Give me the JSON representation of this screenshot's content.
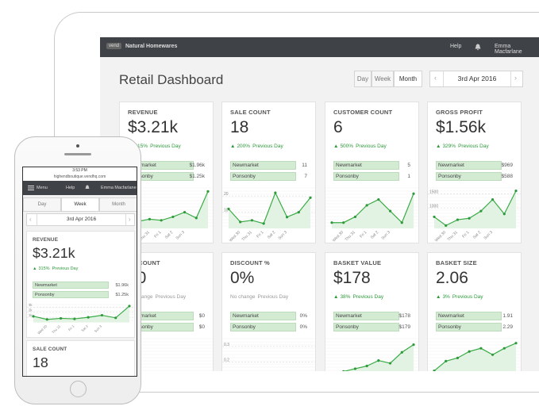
{
  "tablet": {
    "brand": "vend",
    "store": "Natural Homewares",
    "help": "Help",
    "user": "Emma Macfarlane",
    "title": "Retail Dashboard",
    "ranges": [
      "Day",
      "Week",
      "Month"
    ],
    "selected_range": 2,
    "date": "3rd Apr 2016",
    "days": [
      "Wed 30",
      "Thu 31",
      "Fri 1",
      "Sat 2",
      "Sun 3"
    ],
    "cards": [
      {
        "label": "REVENUE",
        "value": "$3.21k",
        "direction": "up",
        "change": "315%",
        "change_note": "Previous Day",
        "rows": [
          {
            "name": "Newmarket",
            "value": "$1.96k"
          },
          {
            "name": "Ponsonby",
            "value": "$1.25k"
          }
        ],
        "trend": [
          1.2,
          0.6,
          0.8,
          0.7,
          1.0,
          1.4,
          0.9,
          3.2
        ],
        "trend_ylim": [
          0,
          3.5
        ]
      },
      {
        "label": "SALE COUNT",
        "value": "18",
        "direction": "up",
        "change": "200%",
        "change_note": "Previous Day",
        "rows": [
          {
            "name": "Newmarket",
            "value": "11"
          },
          {
            "name": "Ponsonby",
            "value": "7"
          }
        ],
        "trend": [
          12,
          4,
          5,
          3,
          22,
          7,
          10,
          19
        ],
        "trend_ylim": [
          0,
          25
        ],
        "yticks": [
          10,
          20
        ]
      },
      {
        "label": "CUSTOMER COUNT",
        "value": "6",
        "direction": "up",
        "change": "500%",
        "change_note": "Previous Day",
        "rows": [
          {
            "name": "Newmarket",
            "value": "5"
          },
          {
            "name": "Ponsonby",
            "value": "1"
          }
        ],
        "trend": [
          1,
          1,
          2,
          4,
          5,
          3,
          1,
          6
        ],
        "trend_ylim": [
          0,
          7
        ]
      },
      {
        "label": "GROSS PROFIT",
        "value": "$1.56k",
        "direction": "up",
        "change": "329%",
        "change_note": "Previous Day",
        "rows": [
          {
            "name": "Newmarket",
            "value": "$969"
          },
          {
            "name": "Ponsonby",
            "value": "$588"
          }
        ],
        "trend": [
          700,
          400,
          600,
          650,
          900,
          1300,
          800,
          1600
        ],
        "trend_ylim": [
          300,
          1700
        ],
        "yticks": [
          1000,
          1500
        ]
      },
      {
        "label": "DISCOUNT",
        "value": "$0",
        "direction": "flat",
        "change": "No change",
        "change_note": "Previous Day",
        "rows": [
          {
            "name": "Newmarket",
            "value": "$0"
          },
          {
            "name": "Ponsonby",
            "value": "$0"
          }
        ],
        "trend": [
          0,
          0,
          0,
          0,
          0,
          0,
          0,
          0
        ],
        "trend_ylim": [
          0,
          1
        ]
      },
      {
        "label": "DISCOUNT %",
        "value": "0%",
        "direction": "flat",
        "change": "No change",
        "change_note": "Previous Day",
        "rows": [
          {
            "name": "Newmarket",
            "value": "0%"
          },
          {
            "name": "Ponsonby",
            "value": "0%"
          }
        ],
        "trend": [
          0.12,
          0.1,
          0.1,
          0.1,
          0.1,
          0.1,
          0.1,
          0.1
        ],
        "trend_ylim": [
          0,
          0.35
        ],
        "yticks": [
          0.2,
          0.3
        ]
      },
      {
        "label": "BASKET VALUE",
        "value": "$178",
        "direction": "up",
        "change": "38%",
        "change_note": "Previous Day",
        "rows": [
          {
            "name": "Newmarket",
            "value": "$178"
          },
          {
            "name": "Ponsonby",
            "value": "$179"
          }
        ],
        "trend": [
          60,
          80,
          90,
          100,
          120,
          110,
          150,
          178
        ],
        "trend_ylim": [
          0,
          200
        ]
      },
      {
        "label": "BASKET SIZE",
        "value": "2.06",
        "direction": "up",
        "change": "3%",
        "change_note": "Previous Day",
        "rows": [
          {
            "name": "Newmarket",
            "value": "1.91"
          },
          {
            "name": "Ponsonby",
            "value": "2.29"
          }
        ],
        "trend": [
          1.2,
          1.5,
          1.6,
          1.8,
          1.9,
          1.7,
          1.9,
          2.06
        ],
        "trend_ylim": [
          0.5,
          2.2
        ]
      }
    ]
  },
  "phone": {
    "time": "3:53 PM",
    "url": "highendboutique.vendhq.com",
    "menu": "Menu",
    "help": "Help",
    "user": "Emma Macfarlane",
    "ranges": [
      "Day",
      "Week",
      "Month"
    ],
    "selected_range": 1,
    "date": "3rd Apr 2016",
    "days": [
      "Wed 30",
      "Thu 31",
      "Fri 1",
      "Sat 2",
      "Sun 3"
    ],
    "cards": [
      {
        "label": "REVENUE",
        "value": "$3.21k",
        "direction": "up",
        "change": "315%",
        "change_note": "Previous Day",
        "rows": [
          {
            "name": "Newmarket",
            "value": "$1.96k"
          },
          {
            "name": "Ponsonby",
            "value": "$1.25k"
          }
        ],
        "trend": [
          1.2,
          0.6,
          0.8,
          0.7,
          1.0,
          1.4,
          0.9,
          3.2
        ],
        "trend_ylim": [
          0,
          3.5
        ],
        "yticks": [
          {
            "value": 1,
            "label": "1k"
          },
          {
            "value": 2,
            "label": "2k"
          },
          {
            "value": 3,
            "label": "3k"
          }
        ]
      },
      {
        "label": "SALE COUNT",
        "value": "18",
        "direction": "up",
        "change": "200%",
        "change_note": "Previous Day"
      }
    ]
  }
}
